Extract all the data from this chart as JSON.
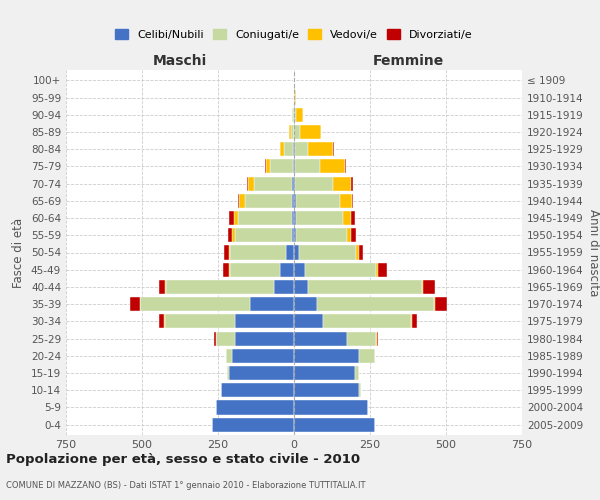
{
  "age_groups": [
    "0-4",
    "5-9",
    "10-14",
    "15-19",
    "20-24",
    "25-29",
    "30-34",
    "35-39",
    "40-44",
    "45-49",
    "50-54",
    "55-59",
    "60-64",
    "65-69",
    "70-74",
    "75-79",
    "80-84",
    "85-89",
    "90-94",
    "95-99",
    "100+"
  ],
  "birth_years": [
    "2005-2009",
    "2000-2004",
    "1995-1999",
    "1990-1994",
    "1985-1989",
    "1980-1984",
    "1975-1979",
    "1970-1974",
    "1965-1969",
    "1960-1964",
    "1955-1959",
    "1950-1954",
    "1945-1949",
    "1940-1944",
    "1935-1939",
    "1930-1934",
    "1925-1929",
    "1920-1924",
    "1915-1919",
    "1910-1914",
    "≤ 1909"
  ],
  "male": {
    "celibi": [
      270,
      255,
      240,
      215,
      205,
      195,
      195,
      145,
      65,
      45,
      25,
      8,
      8,
      5,
      5,
      3,
      2,
      0,
      0,
      0,
      0
    ],
    "coniugati": [
      0,
      0,
      0,
      5,
      20,
      60,
      230,
      360,
      355,
      165,
      185,
      185,
      175,
      155,
      125,
      75,
      30,
      10,
      5,
      0,
      0
    ],
    "vedovi": [
      0,
      0,
      0,
      0,
      0,
      2,
      3,
      3,
      3,
      3,
      5,
      10,
      15,
      20,
      20,
      15,
      15,
      5,
      0,
      0,
      0
    ],
    "divorziati": [
      0,
      0,
      0,
      0,
      0,
      5,
      15,
      30,
      20,
      20,
      15,
      15,
      15,
      5,
      5,
      3,
      0,
      0,
      0,
      0,
      0
    ]
  },
  "female": {
    "nubili": [
      265,
      245,
      215,
      200,
      215,
      175,
      95,
      75,
      45,
      35,
      18,
      8,
      6,
      5,
      3,
      2,
      2,
      0,
      0,
      0,
      0
    ],
    "coniugate": [
      0,
      0,
      5,
      15,
      50,
      95,
      290,
      385,
      375,
      235,
      185,
      165,
      155,
      145,
      125,
      85,
      45,
      20,
      5,
      2,
      0
    ],
    "vedove": [
      0,
      0,
      0,
      0,
      0,
      2,
      3,
      3,
      5,
      5,
      10,
      15,
      25,
      40,
      60,
      80,
      80,
      70,
      25,
      5,
      0
    ],
    "divorziate": [
      0,
      0,
      0,
      0,
      3,
      5,
      15,
      40,
      40,
      30,
      15,
      15,
      15,
      5,
      5,
      5,
      3,
      0,
      0,
      0,
      0
    ]
  },
  "colors": {
    "celibi": "#4472c4",
    "coniugati": "#c5d9a0",
    "vedovi": "#ffc000",
    "divorziati": "#c00000"
  },
  "legend_labels": [
    "Celibi/Nubili",
    "Coniugati/e",
    "Vedovi/e",
    "Divorziati/e"
  ],
  "legend_colors": [
    "#4472c4",
    "#c5d9a0",
    "#ffc000",
    "#c00000"
  ],
  "title": "Popolazione per età, sesso e stato civile - 2010",
  "subtitle": "COMUNE DI MAZZANO (BS) - Dati ISTAT 1° gennaio 2010 - Elaborazione TUTTITALIA.IT",
  "xlabel_left": "Maschi",
  "xlabel_right": "Femmine",
  "ylabel_left": "Fasce di età",
  "ylabel_right": "Anni di nascita",
  "xlim": 750,
  "background_color": "#f0f0f0",
  "bar_background": "#ffffff"
}
